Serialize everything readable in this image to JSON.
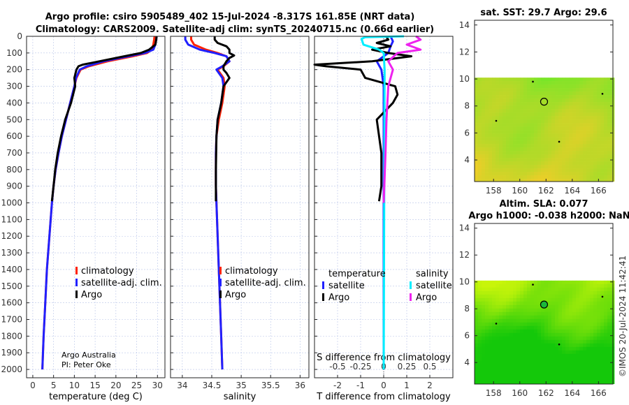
{
  "header": {
    "title1": "Argo profile: csiro 5905489_402 15-Jul-2024 -8.317S 161.85E (NRT data)",
    "title2": "Climatology: CARS2009. Satellite-adj clim: synTS_20240715.nc (0.66d earlier)"
  },
  "credit": {
    "line1": "Argo Australia",
    "line2": "PI: Peter Oke"
  },
  "footer": "©IMOS 20-Jul-2024 11:42:41",
  "colors": {
    "clim": "#ff2200",
    "sat": "#2020ff",
    "argo": "#000000",
    "sat_s": "#00eeff",
    "argo_s": "#ee22ee"
  },
  "chart_data": [
    {
      "type": "line",
      "name": "temperature",
      "xlabel": "temperature (deg C)",
      "xlim": [
        -1.5,
        31.8
      ],
      "ylim": [
        2050,
        0
      ],
      "xticks": [
        "0",
        "5",
        "10",
        "15",
        "20",
        "25",
        "30"
      ],
      "xtickvals": [
        0,
        5,
        10,
        15,
        20,
        25,
        30
      ],
      "yticks": [
        0,
        100,
        200,
        300,
        400,
        500,
        600,
        700,
        800,
        900,
        1000,
        1100,
        1200,
        1300,
        1400,
        1500,
        1600,
        1700,
        1800,
        1900,
        2000
      ],
      "legend": [
        "climatology",
        "satellite-adj. clim.",
        "Argo"
      ],
      "series": [
        {
          "name": "climatology",
          "color": "clim",
          "depth": [
            0,
            20,
            50,
            80,
            100,
            120,
            150,
            180,
            200,
            250,
            300,
            400,
            500,
            600,
            700,
            800,
            900,
            1000,
            1200,
            1400,
            1600,
            1800,
            2000
          ],
          "values": [
            29.3,
            29.2,
            29.0,
            28.6,
            27.5,
            24,
            18,
            13.5,
            11.5,
            10.5,
            10,
            9,
            8,
            7,
            6.2,
            5.5,
            5,
            4.6,
            4,
            3.4,
            3,
            2.6,
            2.3
          ]
        },
        {
          "name": "satellite-adj. clim.",
          "color": "sat",
          "depth": [
            0,
            20,
            50,
            80,
            100,
            120,
            150,
            180,
            200,
            250,
            300,
            400,
            500,
            600,
            700,
            800,
            900,
            1000,
            1200,
            1400,
            1600,
            1800,
            2000
          ],
          "values": [
            29.8,
            29.7,
            29.5,
            29,
            27,
            23,
            17,
            13,
            11.3,
            10.4,
            10,
            9,
            8,
            7,
            6.2,
            5.5,
            5,
            4.6,
            4,
            3.4,
            3,
            2.6,
            2.3
          ]
        },
        {
          "name": "Argo",
          "color": "argo",
          "depth": [
            0,
            20,
            50,
            80,
            100,
            120,
            150,
            170,
            180,
            200,
            250,
            300,
            400,
            500,
            600,
            700,
            800,
            900,
            990
          ],
          "values": [
            29.8,
            29.7,
            29.5,
            28,
            26,
            22,
            16,
            12,
            11,
            10.5,
            10,
            10.2,
            9.2,
            7.8,
            6.8,
            6,
            5.4,
            5,
            4.6
          ]
        }
      ]
    },
    {
      "type": "line",
      "name": "salinity",
      "xlabel": "salinity",
      "xlim": [
        33.8,
        36.15
      ],
      "ylim": [
        2050,
        0
      ],
      "xticks": [
        "34",
        "34.5",
        "35",
        "35.5",
        "36"
      ],
      "xtickvals": [
        34,
        34.5,
        35,
        35.5,
        36
      ],
      "legend": [
        "climatology",
        "satellite-adj. clim.",
        "Argo"
      ],
      "series": [
        {
          "name": "climatology",
          "color": "clim",
          "depth": [
            0,
            20,
            50,
            80,
            100,
            120,
            150,
            180,
            200,
            250,
            300,
            400,
            500,
            600,
            700,
            800,
            900,
            1000,
            1200,
            1400,
            1600,
            1800,
            2000
          ],
          "values": [
            34.15,
            34.15,
            34.2,
            34.4,
            34.6,
            34.75,
            34.8,
            34.7,
            34.6,
            34.7,
            34.72,
            34.68,
            34.62,
            34.58,
            34.57,
            34.57,
            34.57,
            34.58,
            34.6,
            34.62,
            34.64,
            34.66,
            34.68
          ]
        },
        {
          "name": "satellite-adj. clim.",
          "color": "sat",
          "depth": [
            0,
            20,
            50,
            80,
            100,
            120,
            150,
            180,
            200,
            250,
            300,
            400,
            500,
            600,
            700,
            800,
            900,
            1000,
            1200,
            1400,
            1600,
            1800,
            2000
          ],
          "values": [
            34.05,
            34.05,
            34.1,
            34.3,
            34.55,
            34.75,
            34.8,
            34.68,
            34.58,
            34.68,
            34.7,
            34.66,
            34.6,
            34.58,
            34.57,
            34.57,
            34.57,
            34.58,
            34.6,
            34.62,
            34.64,
            34.66,
            34.68
          ]
        },
        {
          "name": "Argo",
          "color": "argo",
          "depth": [
            0,
            20,
            40,
            60,
            80,
            100,
            115,
            130,
            150,
            180,
            200,
            220,
            250,
            300,
            400,
            500,
            600,
            800,
            990
          ],
          "values": [
            34.55,
            34.55,
            34.6,
            34.75,
            34.8,
            34.8,
            34.88,
            34.8,
            34.75,
            34.7,
            34.7,
            34.75,
            34.8,
            34.7,
            34.66,
            34.6,
            34.58,
            34.57,
            34.57
          ]
        }
      ]
    },
    {
      "type": "line",
      "name": "difference",
      "xlabel": "T difference from climatology",
      "x2label": "S difference from climatology",
      "xlim": [
        -3,
        3
      ],
      "ylim": [
        2050,
        0
      ],
      "xticks": [
        "-2",
        "-1",
        "0",
        "1",
        "2"
      ],
      "xtickvals": [
        -2,
        -1,
        0,
        1,
        2
      ],
      "x2ticks": [
        "-0.5",
        "-0.25",
        "0",
        "0.25",
        "0.5"
      ],
      "x2tickvals": [
        -0.5,
        -0.25,
        0,
        0.25,
        0.5
      ],
      "legend_t_title": "temperature",
      "legend_s_title": "salinity",
      "legend": [
        "satellite",
        "Argo",
        "satellite",
        "Argo"
      ],
      "series": [
        {
          "name": "T satellite",
          "color": "sat",
          "scale": "T",
          "depth": [
            0,
            30,
            60,
            100,
            150,
            200,
            300,
            500,
            2000
          ],
          "values": [
            0.3,
            0.4,
            0.3,
            0.2,
            -0.3,
            -0.1,
            0,
            0,
            0
          ]
        },
        {
          "name": "T Argo",
          "color": "argo",
          "scale": "T",
          "depth": [
            0,
            20,
            40,
            60,
            80,
            100,
            120,
            150,
            170,
            180,
            200,
            250,
            300,
            350,
            400,
            500,
            600,
            700,
            800,
            900,
            990
          ],
          "values": [
            0.1,
            0.2,
            -0.3,
            0.3,
            -0.5,
            0.2,
            1.2,
            -0.5,
            -3,
            -2.5,
            -1,
            -0.8,
            0.5,
            0.6,
            0.4,
            -0.3,
            -0.2,
            -0.1,
            -0.1,
            -0.1,
            -0.2
          ]
        },
        {
          "name": "S satellite",
          "color": "sat_s",
          "scale": "S",
          "depth": [
            0,
            5,
            15,
            50,
            80,
            100,
            200,
            2000
          ],
          "values": [
            0.22,
            -0.2,
            -0.24,
            -0.22,
            -0.05,
            0,
            0.01,
            0
          ]
        },
        {
          "name": "S Argo",
          "color": "argo_s",
          "scale": "S",
          "depth": [
            0,
            20,
            50,
            80,
            100,
            150,
            200,
            300,
            500,
            700,
            1000
          ],
          "values": [
            0.35,
            0.4,
            0.25,
            0.4,
            0.15,
            0.05,
            0.1,
            0.05,
            0.03,
            0.02,
            0
          ]
        }
      ]
    },
    {
      "type": "heatmap",
      "name": "sst-map",
      "title": "sat. SST: 29.7 Argo: 29.6",
      "xticks": [
        "158",
        "160",
        "162",
        "164",
        "166"
      ],
      "xtickvals": [
        158,
        160,
        162,
        164,
        166
      ],
      "yticks": [
        "4",
        "6",
        "8",
        "10",
        "12",
        "14"
      ],
      "ytickvals": [
        4,
        6,
        8,
        10,
        12,
        14
      ],
      "xlim": [
        156.55,
        167.1
      ],
      "ylim": [
        2.4,
        14.35
      ],
      "data_top_lat": 10.1,
      "argo_position": [
        161.85,
        8.317
      ]
    },
    {
      "type": "heatmap",
      "name": "sla-map",
      "title": "Altim. SLA: 0.077",
      "title2": "Argo h1000: -0.038 h2000: NaN",
      "xticks": [
        "158",
        "160",
        "162",
        "164",
        "166"
      ],
      "xtickvals": [
        158,
        160,
        162,
        164,
        166
      ],
      "yticks": [
        "4",
        "6",
        "8",
        "10",
        "12",
        "14"
      ],
      "ytickvals": [
        4,
        6,
        8,
        10,
        12,
        14
      ],
      "xlim": [
        156.55,
        167.1
      ],
      "ylim": [
        2.4,
        14.35
      ],
      "data_top_lat": 10.1,
      "argo_position": [
        161.85,
        8.317
      ]
    }
  ]
}
